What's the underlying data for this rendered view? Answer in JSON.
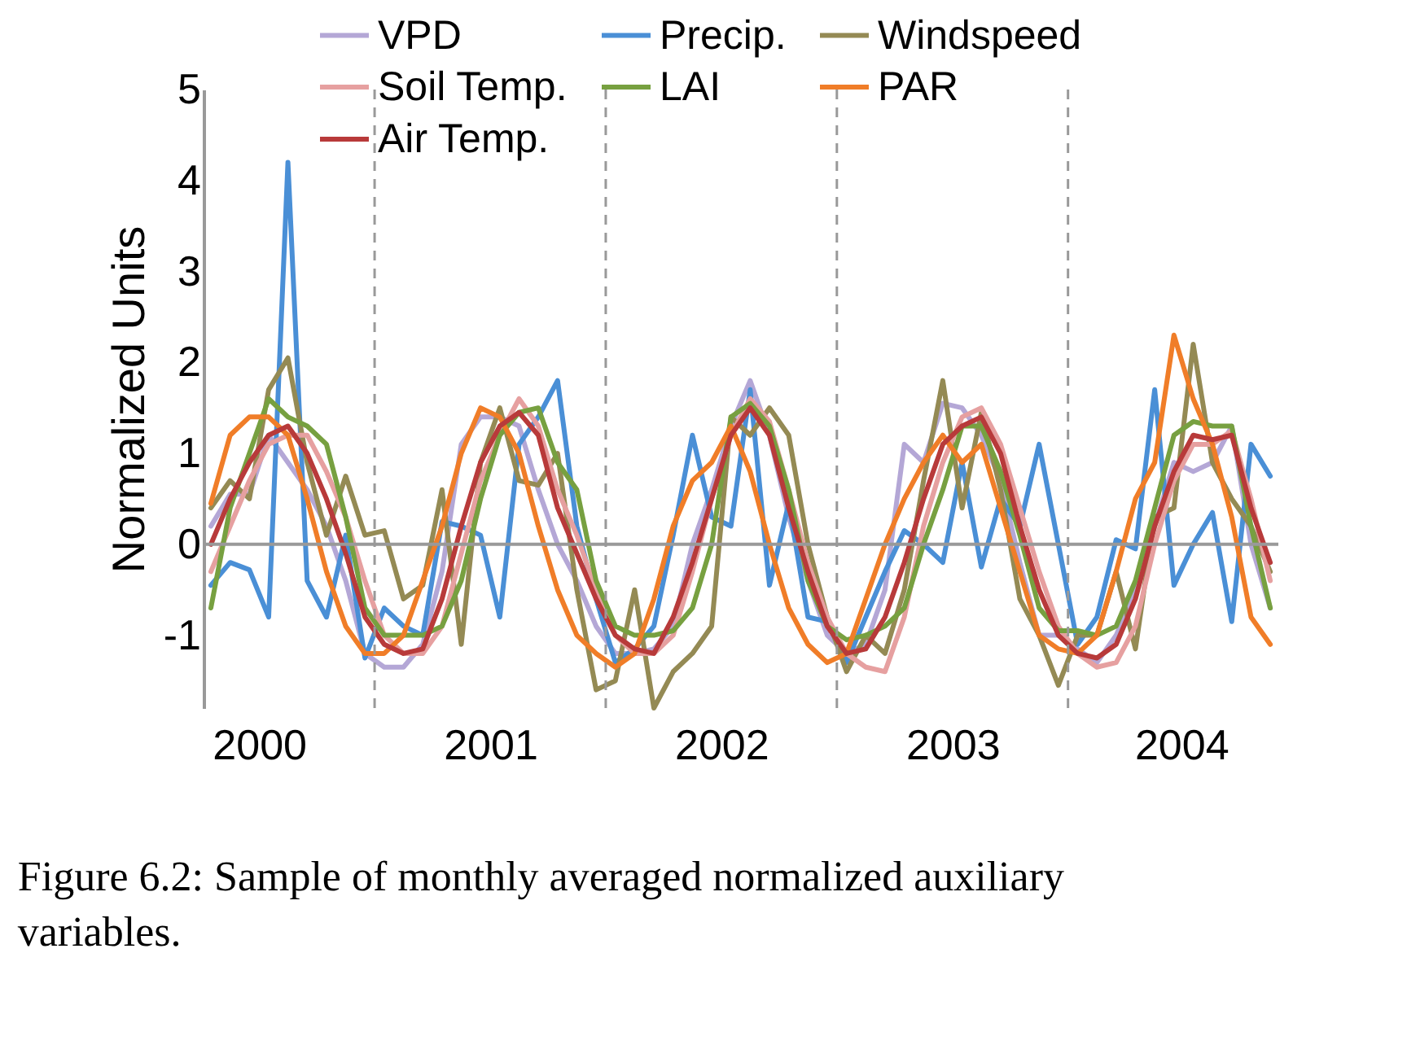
{
  "chart_data": {
    "type": "line",
    "ylabel": "Normalized Units",
    "x": [
      2000.2917,
      2000.375,
      2000.4583,
      2000.5417,
      2000.625,
      2000.7083,
      2000.7917,
      2000.875,
      2000.9583,
      2001.0417,
      2001.125,
      2001.2083,
      2001.2917,
      2001.375,
      2001.4583,
      2001.5417,
      2001.625,
      2001.7083,
      2001.7917,
      2001.875,
      2001.9583,
      2002.0417,
      2002.125,
      2002.2083,
      2002.2917,
      2002.375,
      2002.4583,
      2002.5417,
      2002.625,
      2002.7083,
      2002.7917,
      2002.875,
      2002.9583,
      2003.0417,
      2003.125,
      2003.2083,
      2003.2917,
      2003.375,
      2003.4583,
      2003.5417,
      2003.625,
      2003.7083,
      2003.7917,
      2003.875,
      2003.9583,
      2004.0417,
      2004.125,
      2004.2083,
      2004.2917,
      2004.375,
      2004.4583,
      2004.5417,
      2004.625,
      2004.7083,
      2004.7917,
      2004.875
    ],
    "series": [
      {
        "name": "VPD",
        "color": "#b4a7d6",
        "values": [
          0.2,
          0.55,
          0.55,
          1.2,
          0.9,
          0.6,
          0.2,
          -0.4,
          -1.2,
          -1.35,
          -1.35,
          -1.1,
          -0.3,
          1.1,
          1.4,
          1.4,
          1.3,
          0.6,
          0.0,
          -0.4,
          -0.9,
          -1.2,
          -1.2,
          -1.15,
          -0.9,
          0.0,
          0.6,
          1.3,
          1.8,
          1.2,
          0.3,
          -0.4,
          -1.0,
          -1.2,
          -1.1,
          -0.5,
          1.1,
          0.9,
          1.55,
          1.5,
          1.2,
          0.7,
          -0.2,
          -1.0,
          -1.0,
          -1.15,
          -1.3,
          -1.0,
          -0.5,
          0.2,
          0.9,
          0.8,
          0.9,
          1.3,
          0.0,
          -0.7
        ]
      },
      {
        "name": "Precip.",
        "color": "#4a8fd6",
        "values": [
          -0.45,
          -0.2,
          -0.28,
          -0.8,
          4.2,
          -0.4,
          -0.8,
          0.1,
          -1.25,
          -0.7,
          -0.9,
          -1.0,
          0.25,
          0.2,
          0.1,
          -0.8,
          1.1,
          1.4,
          1.8,
          0.2,
          -0.6,
          -1.3,
          -1.15,
          -0.9,
          0.1,
          1.2,
          0.3,
          0.2,
          1.7,
          -0.45,
          0.45,
          -0.8,
          -0.85,
          -1.3,
          -0.8,
          -0.3,
          0.15,
          0.0,
          -0.2,
          0.9,
          -0.25,
          0.5,
          0.2,
          1.1,
          0.0,
          -1.1,
          -0.8,
          0.05,
          -0.05,
          1.7,
          -0.45,
          0.0,
          0.35,
          -0.85,
          1.1,
          0.75
        ]
      },
      {
        "name": "Windspeed",
        "color": "#948a54",
        "values": [
          0.4,
          0.7,
          0.5,
          1.7,
          2.05,
          0.9,
          0.1,
          0.75,
          0.1,
          0.15,
          -0.6,
          -0.45,
          0.6,
          -1.1,
          0.9,
          1.5,
          0.7,
          0.65,
          1.0,
          -0.5,
          -1.6,
          -1.5,
          -0.5,
          -1.8,
          -1.4,
          -1.2,
          -0.9,
          1.4,
          1.2,
          1.5,
          1.2,
          0.0,
          -0.8,
          -1.4,
          -1.0,
          -1.2,
          -0.5,
          0.7,
          1.8,
          0.4,
          1.45,
          0.6,
          -0.6,
          -1.0,
          -1.55,
          -1.0,
          -1.0,
          -0.3,
          -1.15,
          0.3,
          0.4,
          2.2,
          0.9,
          0.5,
          0.2,
          -0.3
        ]
      },
      {
        "name": "Soil Temp.",
        "color": "#e6a0a0",
        "values": [
          -0.3,
          0.2,
          0.7,
          1.1,
          1.2,
          1.2,
          0.8,
          0.3,
          -0.4,
          -1.0,
          -1.2,
          -1.2,
          -0.9,
          -0.1,
          0.7,
          1.2,
          1.6,
          1.3,
          0.6,
          0.1,
          -0.5,
          -1.0,
          -1.2,
          -1.2,
          -1.0,
          -0.3,
          0.5,
          1.2,
          1.6,
          1.35,
          0.6,
          -0.2,
          -0.8,
          -1.2,
          -1.35,
          -1.4,
          -0.8,
          0.2,
          0.9,
          1.4,
          1.5,
          1.1,
          0.4,
          -0.3,
          -0.9,
          -1.2,
          -1.35,
          -1.3,
          -0.9,
          0.0,
          0.7,
          1.1,
          1.1,
          1.25,
          0.5,
          -0.4
        ]
      },
      {
        "name": "LAI",
        "color": "#77a040",
        "values": [
          -0.7,
          0.4,
          1.0,
          1.6,
          1.4,
          1.3,
          1.1,
          0.3,
          -0.7,
          -1.0,
          -1.0,
          -1.0,
          -0.9,
          -0.4,
          0.5,
          1.2,
          1.45,
          1.5,
          0.9,
          0.6,
          -0.4,
          -0.9,
          -1.0,
          -1.0,
          -0.95,
          -0.7,
          0.0,
          1.4,
          1.55,
          1.3,
          0.6,
          -0.4,
          -0.9,
          -1.05,
          -1.0,
          -0.9,
          -0.7,
          0.0,
          0.6,
          1.3,
          1.3,
          0.8,
          0.1,
          -0.7,
          -0.95,
          -0.95,
          -1.0,
          -0.9,
          -0.4,
          0.4,
          1.2,
          1.35,
          1.3,
          1.3,
          0.2,
          -0.7
        ]
      },
      {
        "name": "PAR",
        "color": "#f07d28",
        "values": [
          0.45,
          1.2,
          1.4,
          1.4,
          1.2,
          0.5,
          -0.3,
          -0.9,
          -1.2,
          -1.2,
          -1.0,
          -0.4,
          0.2,
          1.0,
          1.5,
          1.4,
          1.0,
          0.2,
          -0.5,
          -1.0,
          -1.2,
          -1.35,
          -1.2,
          -0.6,
          0.2,
          0.7,
          0.9,
          1.3,
          0.8,
          0.0,
          -0.7,
          -1.1,
          -1.3,
          -1.2,
          -0.6,
          0.0,
          0.5,
          0.9,
          1.2,
          0.9,
          1.1,
          0.4,
          -0.3,
          -1.0,
          -1.15,
          -1.2,
          -1.0,
          -0.3,
          0.5,
          0.9,
          2.3,
          1.6,
          1.1,
          0.3,
          -0.8,
          -1.1
        ]
      },
      {
        "name": "Air Temp.",
        "color": "#b83a3a",
        "values": [
          0.0,
          0.5,
          0.9,
          1.2,
          1.3,
          1.0,
          0.5,
          -0.1,
          -0.8,
          -1.1,
          -1.2,
          -1.15,
          -0.6,
          0.2,
          0.9,
          1.3,
          1.45,
          1.2,
          0.4,
          -0.1,
          -0.6,
          -1.0,
          -1.15,
          -1.2,
          -0.8,
          -0.2,
          0.5,
          1.2,
          1.5,
          1.2,
          0.4,
          -0.3,
          -0.9,
          -1.2,
          -1.15,
          -0.8,
          -0.2,
          0.5,
          1.1,
          1.3,
          1.4,
          1.0,
          0.2,
          -0.5,
          -1.0,
          -1.2,
          -1.25,
          -1.1,
          -0.6,
          0.2,
          0.8,
          1.2,
          1.15,
          1.2,
          0.4,
          -0.2
        ]
      }
    ],
    "xlim": [
      2000.26,
      2004.91
    ],
    "xticks": [
      {
        "value": 2000.5,
        "label": "2000"
      },
      {
        "value": 2001.5,
        "label": "2001"
      },
      {
        "value": 2002.5,
        "label": "2002"
      },
      {
        "value": 2003.5,
        "label": "2003"
      },
      {
        "value": 2004.49,
        "label": "2004"
      }
    ],
    "ylim": [
      -1.8,
      5
    ],
    "yticks": [
      -1,
      0,
      1,
      2,
      3,
      4,
      5
    ],
    "ref_lines": [
      {
        "axis": "y",
        "value": 0,
        "color": "#999999",
        "line_style": "solid"
      },
      {
        "axis": "x",
        "value": 2001,
        "color": "#999999",
        "line_style": "dashed"
      },
      {
        "axis": "x",
        "value": 2002,
        "color": "#999999",
        "line_style": "dashed"
      },
      {
        "axis": "x",
        "value": 2003,
        "color": "#999999",
        "line_style": "dashed"
      },
      {
        "axis": "x",
        "value": 2004,
        "color": "#999999",
        "line_style": "dashed"
      }
    ],
    "legend": "top",
    "marker": "none",
    "line_style": "solid",
    "annotations": [
      "Figure 6.2: Sample of monthly averaged normalized auxiliary variables."
    ]
  }
}
